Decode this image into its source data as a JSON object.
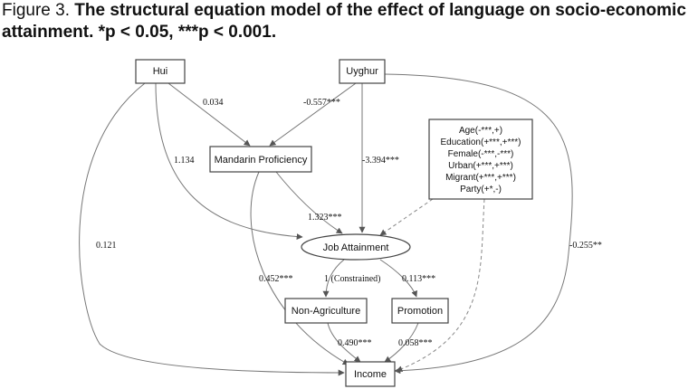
{
  "caption": {
    "lead": "Figure 3.",
    "title": "The structural equation model of the effect of language on socio-economic attainment.",
    "significance": "*p < 0.05, ***p < 0.001."
  },
  "nodes": {
    "hui": "Hui",
    "uyghur": "Uyghur",
    "mandarin": "Mandarin Proficiency",
    "job": "Job Attainment",
    "nonagri": "Non-Agriculture",
    "promotion": "Promotion",
    "income": "Income"
  },
  "covariates": [
    "Age(-***,+)",
    "Education(+***,+***)",
    "Female(-***,-***)",
    "Urban(+***,+***)",
    "Migrant(+***,+***)",
    "Party(+*,-)"
  ],
  "edges": {
    "hui_mandarin": "0.034",
    "uyghur_mandarin": "-0.557***",
    "hui_job": "1.134",
    "uyghur_job": "-3.394***",
    "mandarin_job": "1.323***",
    "hui_income": "0.121",
    "uyghur_income": "-0.255**",
    "mandarin_income": "0.452***",
    "job_nonagri": "1 (Constrained)",
    "job_promotion": "0.113***",
    "nonagri_income": "0.490***",
    "promotion_income": "0.058***"
  }
}
